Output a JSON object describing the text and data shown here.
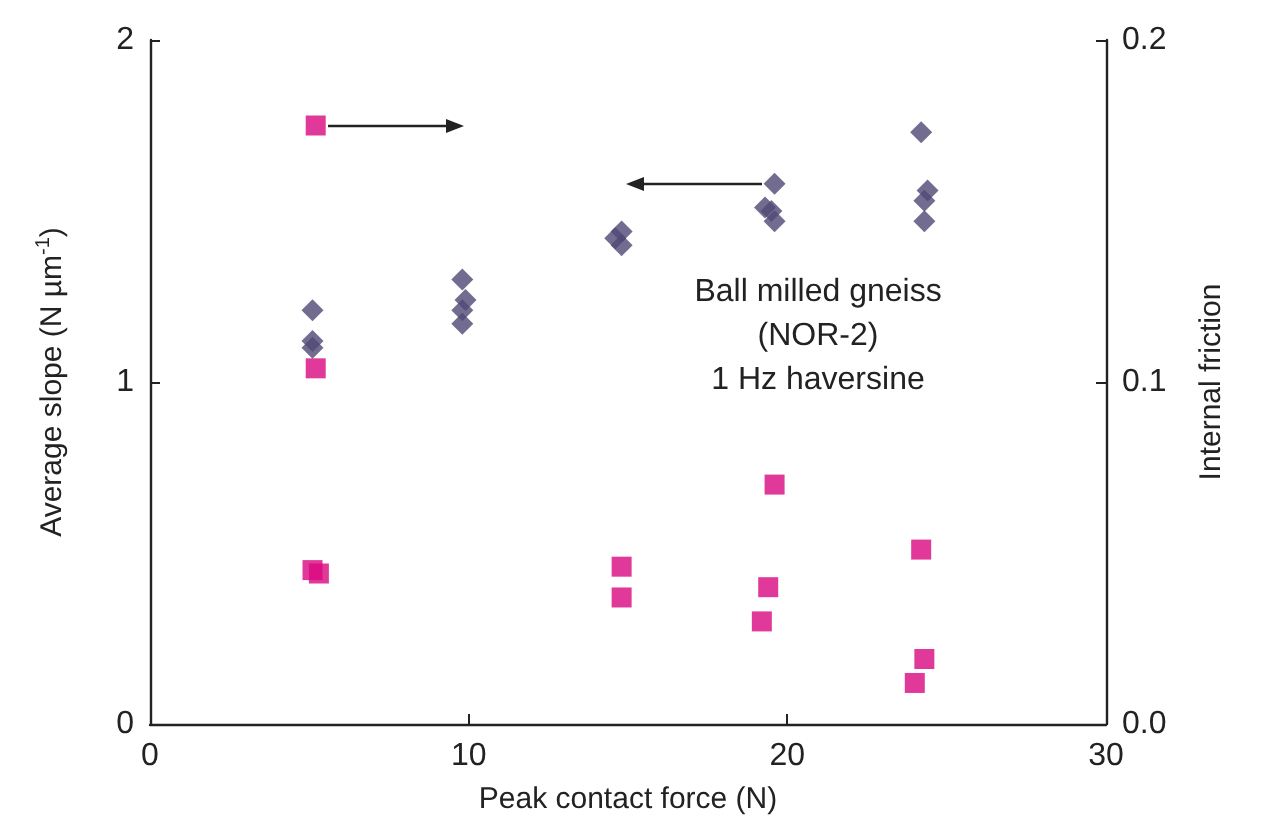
{
  "chart_data": {
    "type": "scatter",
    "xlabel": "Peak contact force (N)",
    "ylabel": "Average slope (N µm$^{-1}$)",
    "y2label": "Internal friction",
    "xlim": [
      0,
      30
    ],
    "xticks": [
      0,
      10,
      20,
      30
    ],
    "ylim": [
      0,
      2
    ],
    "yticks": [
      0,
      1,
      2
    ],
    "y2lim": [
      0,
      0.2
    ],
    "y2ticks": [
      {
        "value": 0,
        "label": "0.0"
      },
      {
        "value": 0.1,
        "label": "0.1"
      },
      {
        "value": 0.2,
        "label": "0.2"
      }
    ],
    "grid": false,
    "annotations": [
      "Ball milled gneiss\n(NOR-2)\n1 Hz haversine"
    ],
    "series": [
      {
        "color": "#4f4874",
        "marker": "diamond",
        "x": [
          5.1,
          5.1,
          5.1,
          9.8,
          9.9,
          9.8,
          9.8,
          14.8,
          14.6,
          14.8,
          19.6,
          19.3,
          19.5,
          19.6,
          24.2,
          24.4,
          24.3,
          24.3
        ],
        "values": [
          1.21,
          1.12,
          1.1,
          1.3,
          1.24,
          1.21,
          1.17,
          1.44,
          1.42,
          1.4,
          1.58,
          1.51,
          1.5,
          1.47,
          1.73,
          1.56,
          1.53,
          1.47
        ]
      },
      {
        "color": "#d9077f",
        "marker": "square",
        "axis": "y2",
        "x": [
          5.2,
          5.2,
          5.1,
          5.3,
          14.8,
          14.8,
          19.6,
          19.4,
          19.2,
          24.2,
          24.3,
          24.0
        ],
        "values": [
          0.175,
          0.104,
          0.045,
          0.044,
          0.046,
          0.037,
          0.07,
          0.04,
          0.03,
          0.051,
          0.019,
          0.012
        ]
      }
    ]
  }
}
